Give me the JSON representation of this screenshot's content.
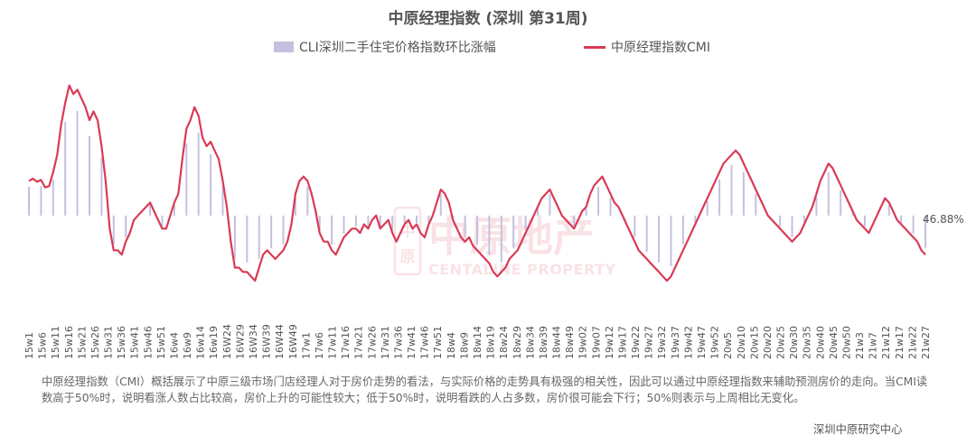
{
  "title": "中原经理指数 (深圳 第31周)",
  "chart_data": {
    "type": "bar+line",
    "title": "中原经理指数 (深圳 第31周)",
    "legend": [
      {
        "name": "CLI深圳二手住宅价格指数环比涨幅",
        "type": "bar",
        "color": "#c4c0e0"
      },
      {
        "name": "中原经理指数CMI",
        "type": "line",
        "color": "#d93a56"
      }
    ],
    "tick_labels": [
      "15w1",
      "15w6",
      "15w11",
      "15w16",
      "15w21",
      "15w26",
      "15w31",
      "15w36",
      "15w41",
      "15w46",
      "15w51",
      "16w4",
      "16w9",
      "16w14",
      "16w19",
      "16W24",
      "16W29",
      "16W34",
      "16W39",
      "16W44",
      "16W49",
      "17w1",
      "17w6",
      "17w11",
      "17w16",
      "17w21",
      "17w26",
      "17w31",
      "17w36",
      "17w41",
      "17w46",
      "17w51",
      "18w4",
      "18w9",
      "18w14",
      "18w19",
      "18w24",
      "18w29",
      "18w34",
      "18w39",
      "18w44",
      "18w49",
      "19w02",
      "19w07",
      "19w12",
      "19w17",
      "19w22",
      "19w27",
      "19w32",
      "19w37",
      "19w42",
      "19w47",
      "19w52",
      "20w5",
      "20w10",
      "20w15",
      "20w20",
      "20w25",
      "20w30",
      "20w35",
      "20w40",
      "20w45",
      "20w50",
      "21w3",
      "21w7",
      "21w12",
      "21w17",
      "21w22",
      "21w27"
    ],
    "cmi_series": [
      58,
      58.5,
      57.8,
      58.2,
      56.5,
      56.8,
      60,
      64,
      71,
      76,
      80,
      78,
      79,
      77,
      75,
      72,
      74,
      72,
      66,
      58,
      47,
      42,
      42,
      41,
      44,
      46,
      49,
      50,
      51,
      52,
      53,
      51,
      49,
      47,
      47,
      50,
      53,
      55,
      63,
      70,
      72,
      75,
      73,
      68,
      66,
      67,
      65,
      63,
      58,
      52,
      44,
      38,
      38,
      37,
      37,
      36,
      35,
      38,
      41,
      42,
      41,
      40,
      41,
      42,
      44,
      48,
      55,
      58,
      59,
      58,
      55,
      51,
      46,
      44,
      44,
      42,
      41,
      43,
      45,
      46,
      47,
      47,
      46,
      48,
      47,
      49,
      50,
      47,
      48,
      49,
      46,
      44,
      46,
      48,
      49,
      47,
      48,
      46,
      45,
      48,
      50,
      53,
      56,
      55,
      53,
      49,
      47,
      45,
      44,
      45,
      43,
      42,
      41,
      40,
      39,
      37,
      36,
      37,
      38,
      40,
      41,
      42,
      44,
      46,
      48,
      50,
      52,
      54,
      55,
      56,
      54,
      52,
      50,
      49,
      48,
      47,
      49,
      51,
      52,
      55,
      57,
      58,
      59,
      57,
      55,
      53,
      52,
      50,
      48,
      46,
      44,
      42,
      41,
      40,
      39,
      38,
      37,
      36,
      35,
      36,
      38,
      40,
      42,
      44,
      46,
      48,
      50,
      52,
      54,
      56,
      58,
      60,
      62,
      63,
      64,
      65,
      64,
      62,
      60,
      58,
      56,
      54,
      52,
      50,
      49,
      48,
      47,
      46,
      45,
      44,
      45,
      46,
      48,
      50,
      52,
      55,
      58,
      60,
      62,
      61,
      59,
      57,
      55,
      53,
      51,
      49,
      48,
      47,
      46,
      48,
      50,
      52,
      54,
      53,
      51,
      49,
      48,
      47,
      46,
      45,
      44,
      42,
      41
    ],
    "cmi_label": "46.88%"
  },
  "description": "中原经理指数（CMI）概括展示了中原三级市场门店经理人对于房价走势的看法，与实际价格的走势具有极强的相关性，因此可以通过中原经理指数来辅助预测房价的走向。当CMI读数高于50%时，说明看涨人数占比较高，房价上升的可能性较大；低于50%时，说明看跌的人占多数，房价很可能会下行；50%则表示与上周相比无变化。",
  "source": "深圳中原研究中心",
  "watermark": {
    "brand_cn": "中原地产",
    "brand_en": "CENTALINE PROPERTY",
    "seal": "中原"
  },
  "colors": {
    "bar": "#c4c0e0",
    "line": "#d93a56",
    "watermark": "#d93a56"
  }
}
